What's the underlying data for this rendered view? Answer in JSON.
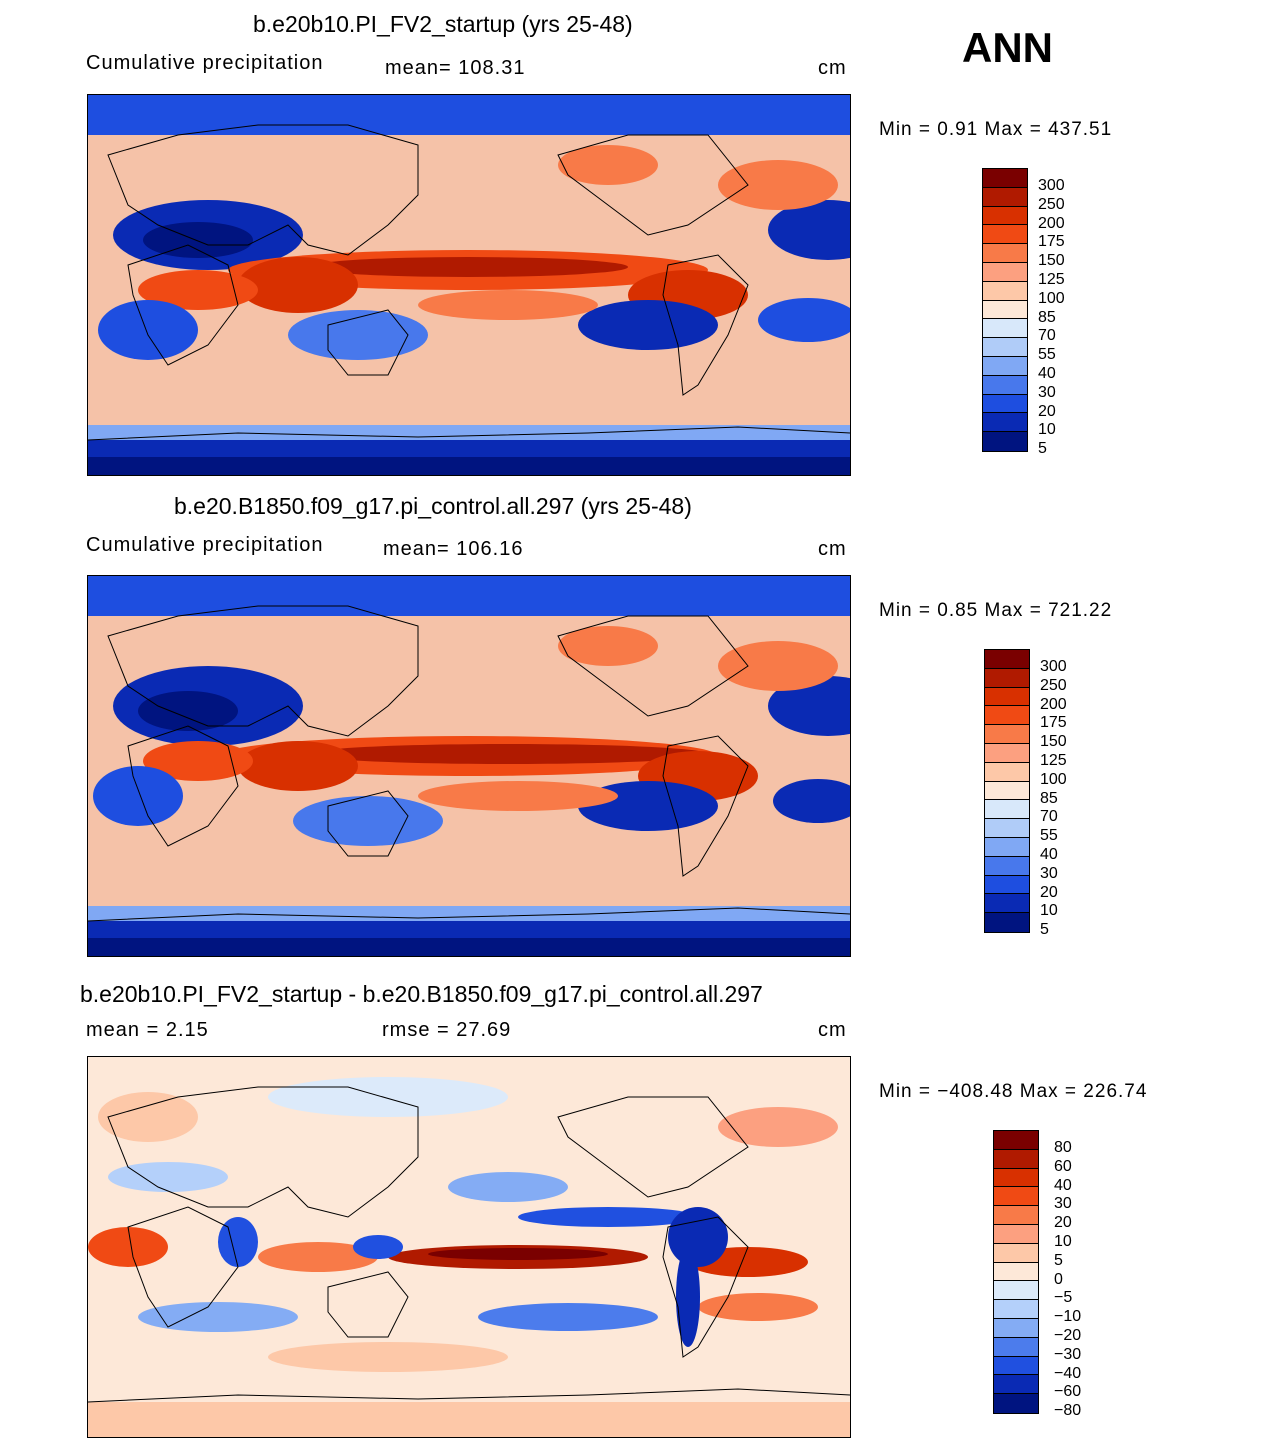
{
  "season": "ANN",
  "panels": [
    {
      "title": "b.e20b10.PI_FV2_startup (yrs 25-48)",
      "left_text": "Cumulative precipitation",
      "mid_text": "mean=  108.31",
      "unit": "cm",
      "minmax": "Min  =     0.91  Max  =  437.51",
      "labels": [
        "300",
        "250",
        "200",
        "175",
        "150",
        "125",
        "100",
        "85",
        "70",
        "55",
        "40",
        "30",
        "20",
        "10",
        "5"
      ]
    },
    {
      "title": "b.e20.B1850.f09_g17.pi_control.all.297 (yrs 25-48)",
      "left_text": "Cumulative precipitation",
      "mid_text": "mean=  106.16",
      "unit": "cm",
      "minmax": "Min  =     0.85  Max  =  721.22",
      "labels": [
        "300",
        "250",
        "200",
        "175",
        "150",
        "125",
        "100",
        "85",
        "70",
        "55",
        "40",
        "30",
        "20",
        "10",
        "5"
      ]
    },
    {
      "title": "b.e20b10.PI_FV2_startup - b.e20.B1850.f09_g17.pi_control.all.297",
      "left_text": "mean  =     2.15",
      "mid_text": "rmse  =    27.69",
      "unit": "cm",
      "minmax": "Min  = −408.48  Max  =  226.74",
      "labels": [
        "80",
        "60",
        "40",
        "30",
        "20",
        "10",
        "5",
        "0",
        "−5",
        "−10",
        "−20",
        "−30",
        "−40",
        "−60",
        "−80"
      ]
    }
  ],
  "colors": {
    "precip_scale": [
      "#7a0000",
      "#b01a00",
      "#d83000",
      "#f04a14",
      "#f87a48",
      "#fca080",
      "#fdc8a8",
      "#fde8d8",
      "#d8e8fa",
      "#b0ccf8",
      "#80a8f4",
      "#4878ec",
      "#1e4ee0",
      "#0a2ab4",
      "#001480"
    ],
    "diff_scale": [
      "#7a0000",
      "#b01a00",
      "#d83000",
      "#f04a14",
      "#f87a48",
      "#fca080",
      "#fdc8a8",
      "#fde8d8",
      "#dceafa",
      "#b4d0fa",
      "#84acf4",
      "#4c7cec",
      "#2050e0",
      "#0a2ab4",
      "#001480"
    ],
    "coast": "#000000"
  },
  "chart_data": [
    {
      "type": "heatmap",
      "title": "b.e20b10.PI_FV2_startup (yrs 25-48)",
      "variable": "Cumulative precipitation",
      "units": "cm",
      "mean": 108.31,
      "min": 0.91,
      "max": 437.51,
      "contour_levels": [
        5,
        10,
        20,
        30,
        40,
        55,
        70,
        85,
        100,
        125,
        150,
        175,
        200,
        250,
        300
      ]
    },
    {
      "type": "heatmap",
      "title": "b.e20.B1850.f09_g17.pi_control.all.297 (yrs 25-48)",
      "variable": "Cumulative precipitation",
      "units": "cm",
      "mean": 106.16,
      "min": 0.85,
      "max": 721.22,
      "contour_levels": [
        5,
        10,
        20,
        30,
        40,
        55,
        70,
        85,
        100,
        125,
        150,
        175,
        200,
        250,
        300
      ]
    },
    {
      "type": "heatmap",
      "title": "b.e20b10.PI_FV2_startup - b.e20.B1850.f09_g17.pi_control.all.297",
      "units": "cm",
      "mean": 2.15,
      "rmse": 27.69,
      "min": -408.48,
      "max": 226.74,
      "contour_levels": [
        -80,
        -60,
        -40,
        -30,
        -20,
        -10,
        -5,
        0,
        5,
        10,
        20,
        30,
        40,
        60,
        80
      ]
    }
  ]
}
